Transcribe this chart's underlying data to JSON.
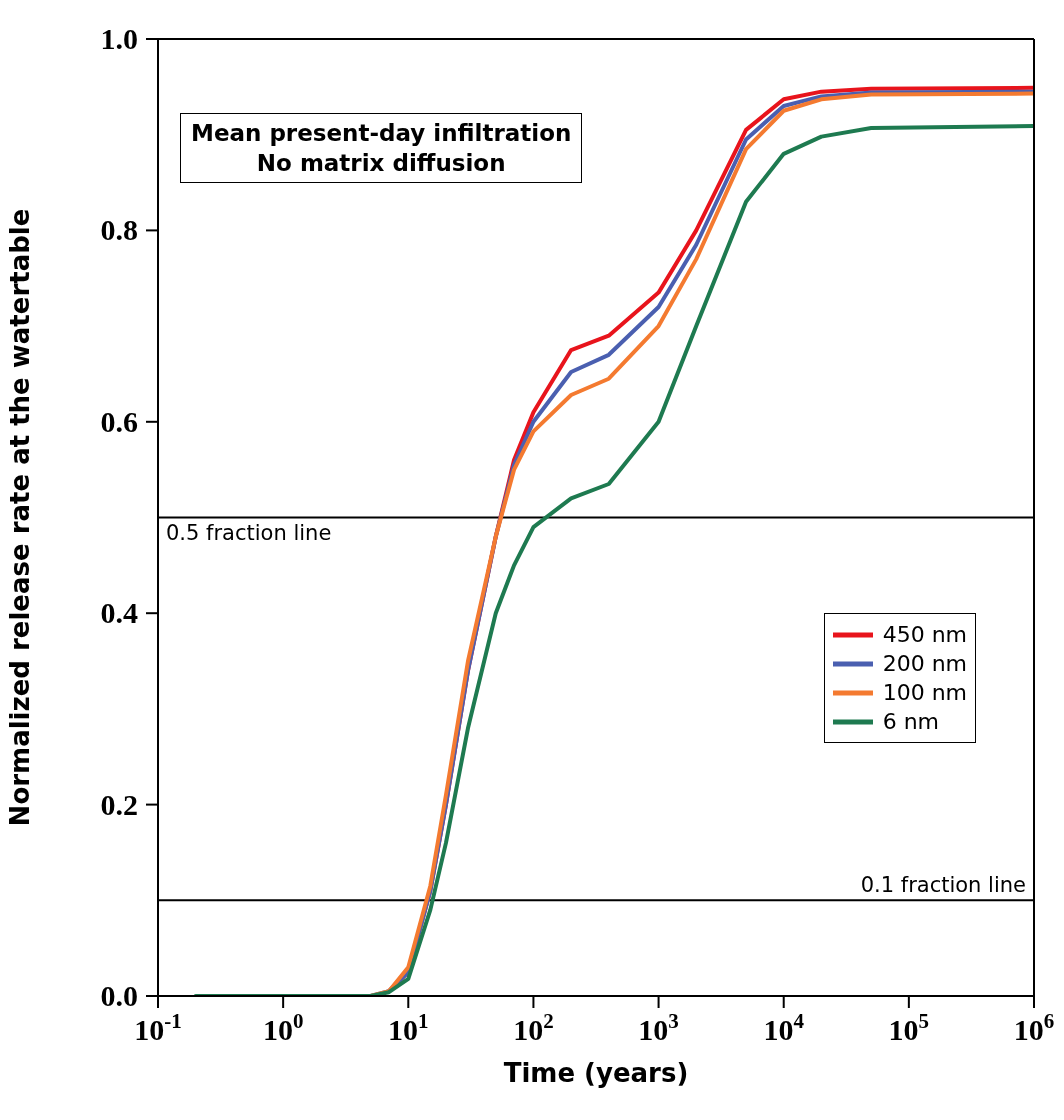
{
  "chart_data": {
    "type": "line",
    "xlabel": "Time (years)",
    "ylabel": "Normalized release rate at the watertable",
    "annotations": [
      "Mean present-day infiltration",
      "No matrix diffusion"
    ],
    "log": "x",
    "x": [
      0.2,
      1,
      5,
      7,
      10,
      15,
      20,
      30,
      50,
      70,
      100,
      200,
      400,
      1000,
      2000,
      5000,
      10000,
      20000,
      50000,
      1000000
    ],
    "series": [
      {
        "name": "450 nm",
        "color": "#e8141c",
        "values": [
          null,
          null,
          null,
          0.005,
          0.025,
          0.11,
          0.2,
          0.34,
          0.48,
          0.56,
          0.61,
          0.675,
          0.69,
          0.735,
          0.8,
          0.905,
          0.937,
          0.945,
          0.948,
          0.949
        ]
      },
      {
        "name": "200 nm",
        "color": "#4a5fb0",
        "values": [
          null,
          null,
          0,
          0.005,
          0.025,
          0.11,
          0.2,
          0.34,
          0.48,
          0.555,
          0.6,
          0.652,
          0.67,
          0.72,
          0.785,
          0.895,
          0.93,
          0.94,
          0.944,
          0.945
        ]
      },
      {
        "name": "100 nm",
        "color": "#f47a30",
        "values": [
          null,
          null,
          0,
          0.005,
          0.03,
          0.115,
          0.21,
          0.35,
          0.48,
          0.55,
          0.59,
          0.628,
          0.645,
          0.7,
          0.77,
          0.885,
          0.925,
          0.937,
          0.942,
          0.943
        ]
      },
      {
        "name": "6 nm",
        "color": "#1e7a50",
        "values": [
          0,
          0,
          0,
          0.004,
          0.018,
          0.09,
          0.16,
          0.28,
          0.4,
          0.45,
          0.49,
          0.52,
          0.535,
          0.6,
          0.7,
          0.83,
          0.88,
          0.898,
          0.907,
          0.909
        ]
      }
    ],
    "xlim": [
      0.1,
      1000000
    ],
    "xticks": [
      {
        "value": 0.1,
        "label": "10$^{-1}$"
      },
      {
        "value": 1,
        "label": "10$^{0}$"
      },
      {
        "value": 10,
        "label": "10$^{1}$"
      },
      {
        "value": 100,
        "label": "10$^{2}$"
      },
      {
        "value": 1000,
        "label": "10$^{3}$"
      },
      {
        "value": 10000,
        "label": "10$^{4}$"
      },
      {
        "value": 100000,
        "label": "10$^{5}$"
      },
      {
        "value": 1000000,
        "label": "10$^{6}$"
      }
    ],
    "ylim": [
      0,
      1
    ],
    "yticks": [
      {
        "value": 0,
        "label": "0.0"
      },
      0.2,
      0.4,
      0.6,
      0.8,
      {
        "value": 1,
        "label": "1.0"
      }
    ],
    "ref_lines": [
      {
        "axis": "y",
        "value": 0.5,
        "label": "0.5 fraction line",
        "color": "#000000"
      },
      {
        "axis": "y",
        "value": 0.1,
        "label": "0.1 fraction line",
        "color": "#000000"
      }
    ],
    "grid": false,
    "legend": "right",
    "marker": "none",
    "line_style": "solid"
  }
}
